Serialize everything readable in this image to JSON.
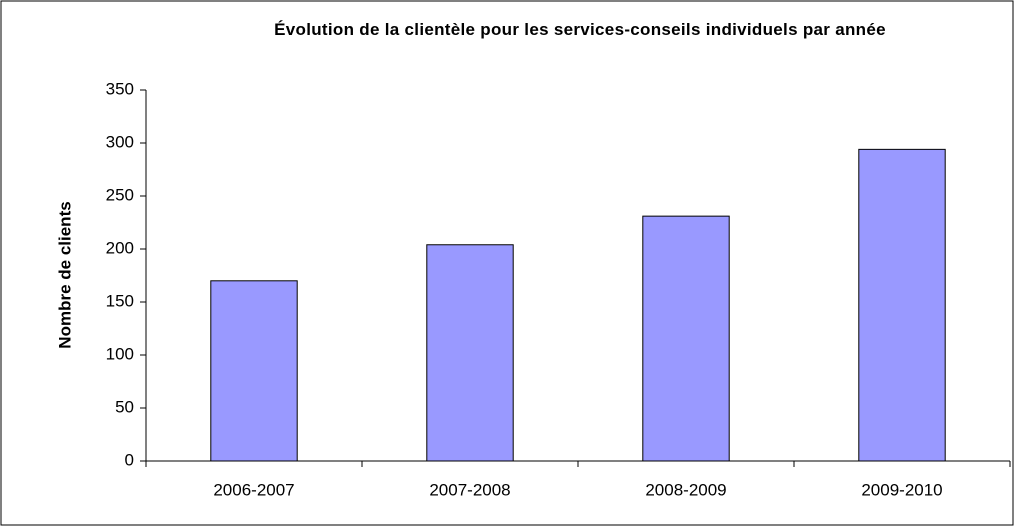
{
  "chart_data": {
    "type": "bar",
    "title": "Évolution de la clientèle pour les services-conseils individuels par année",
    "y_label": "Nombre de clients",
    "categories": [
      "2006-2007",
      "2007-2008",
      "2008-2009",
      "2009-2010"
    ],
    "values": [
      170,
      204,
      231,
      294
    ],
    "color": "#9999ff",
    "ylim": [
      0,
      350
    ],
    "yticks": [
      0,
      50,
      100,
      150,
      200,
      250,
      300,
      350
    ],
    "grid": false
  }
}
